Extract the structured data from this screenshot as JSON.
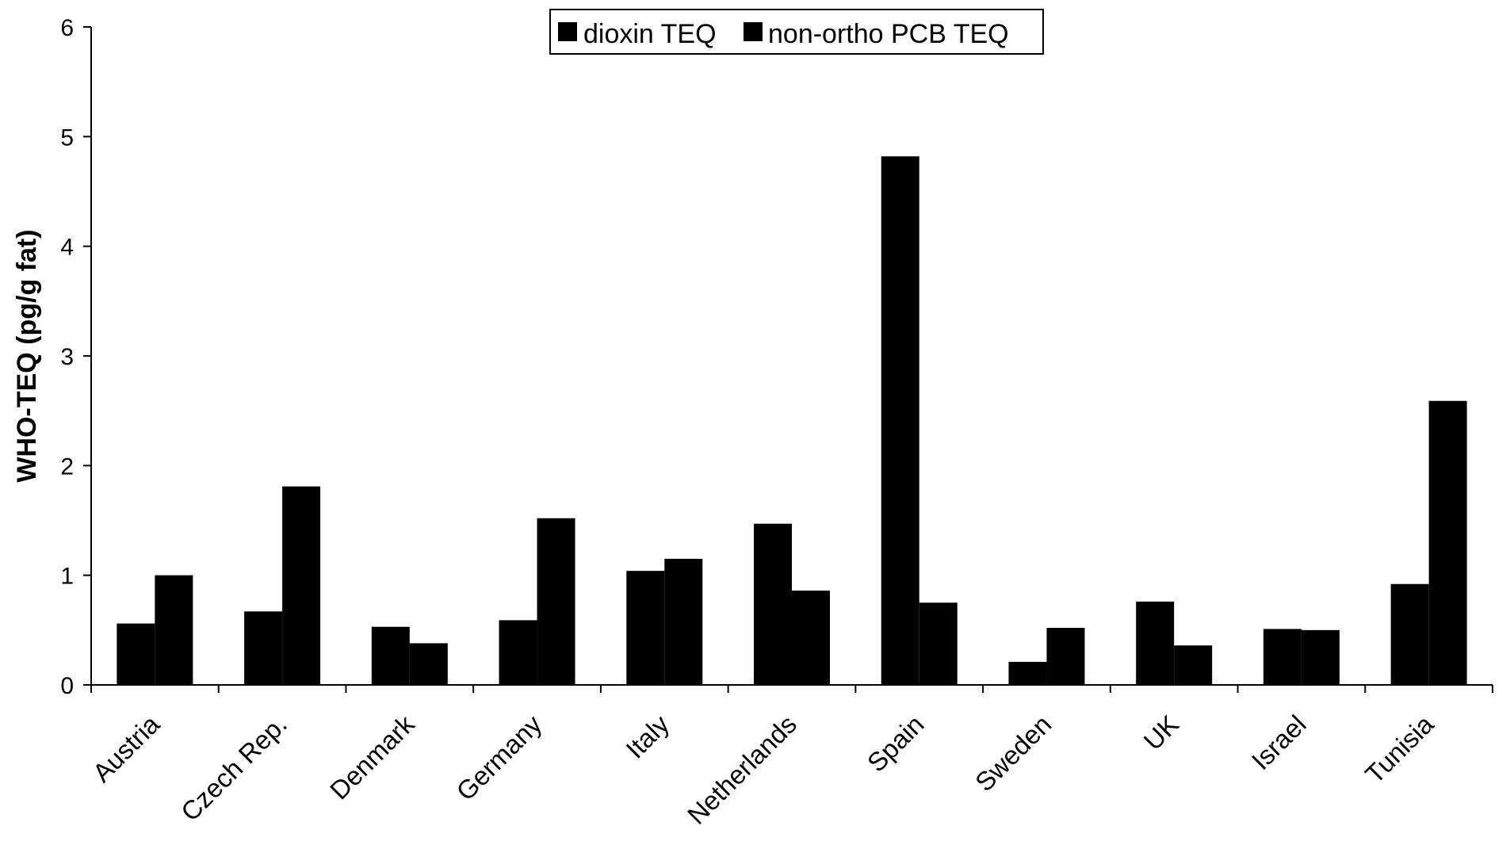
{
  "chart_data": {
    "type": "bar",
    "title": "",
    "xlabel": "",
    "ylabel": "WHO-TEQ (pg/g fat)",
    "ylim": [
      0,
      6
    ],
    "yticks": [
      "0",
      "1",
      "2",
      "3",
      "4",
      "5",
      "6"
    ],
    "grid": false,
    "legend_position": "top-center",
    "categories": [
      "Austria",
      "Czech Rep.",
      "Denmark",
      "Germany",
      "Italy",
      "Netherlands",
      "Spain",
      "Sweden",
      "UK",
      "Israel",
      "Tunisia"
    ],
    "series": [
      {
        "name": "dioxin TEQ",
        "color": "#000000",
        "values": [
          0.56,
          0.67,
          0.53,
          0.59,
          1.04,
          1.47,
          4.82,
          0.21,
          0.76,
          0.51,
          0.92
        ]
      },
      {
        "name": "non-ortho PCB TEQ",
        "color": "#000000",
        "values": [
          1.0,
          1.81,
          0.38,
          1.52,
          1.15,
          0.86,
          0.75,
          0.52,
          0.36,
          0.5,
          2.59
        ]
      }
    ]
  }
}
